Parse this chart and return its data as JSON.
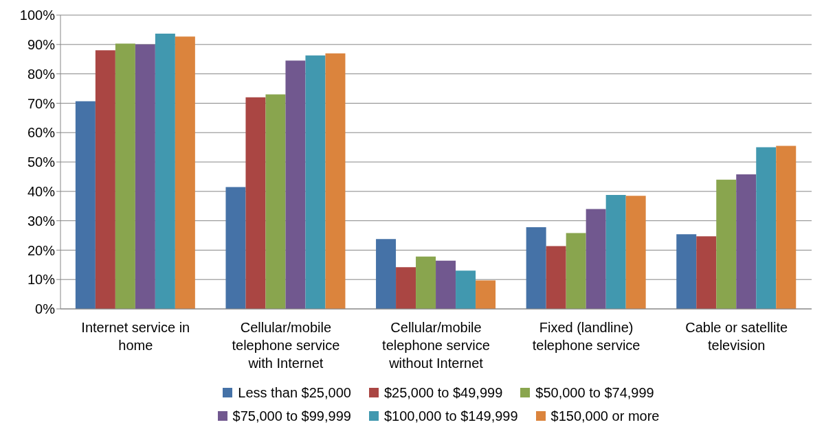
{
  "chart_data": {
    "type": "bar",
    "categories": [
      "Internet service in home",
      "Cellular/mobile telephone service with Internet",
      "Cellular/mobile telephone service without Internet",
      "Fixed (landline) telephone service",
      "Cable or satellite television"
    ],
    "series": [
      {
        "name": "Less than $25,000",
        "color": "#4572a7",
        "values": [
          70.7,
          41.5,
          23.8,
          27.8,
          25.4
        ]
      },
      {
        "name": "$25,000 to $49,999",
        "color": "#aa4643",
        "values": [
          88,
          72,
          14.2,
          21.4,
          24.7
        ]
      },
      {
        "name": "$50,000 to $74,999",
        "color": "#89a54e",
        "values": [
          90.3,
          73,
          17.8,
          25.8,
          44
        ]
      },
      {
        "name": "$75,000 to $99,999",
        "color": "#71588f",
        "values": [
          90,
          84.5,
          16.4,
          34,
          45.8
        ]
      },
      {
        "name": "$100,000 to $149,999",
        "color": "#4198af",
        "values": [
          93.7,
          86.3,
          13,
          38.8,
          55
        ]
      },
      {
        "name": "$150,000 or more",
        "color": "#db843d",
        "values": [
          92.7,
          87,
          9.7,
          38.5,
          55.5
        ]
      }
    ],
    "ylim": [
      0,
      100
    ],
    "yticks": [
      {
        "value": 0,
        "label": "0%"
      },
      {
        "value": 10,
        "label": "10%"
      },
      {
        "value": 20,
        "label": "20%"
      },
      {
        "value": 30,
        "label": "30%"
      },
      {
        "value": 40,
        "label": "40%"
      },
      {
        "value": 50,
        "label": "50%"
      },
      {
        "value": 60,
        "label": "60%"
      },
      {
        "value": 70,
        "label": "70%"
      },
      {
        "value": 80,
        "label": "80%"
      },
      {
        "value": 90,
        "label": "90%"
      },
      {
        "value": 100,
        "label": "100%"
      }
    ],
    "grid": "y",
    "legend": "bottom"
  }
}
